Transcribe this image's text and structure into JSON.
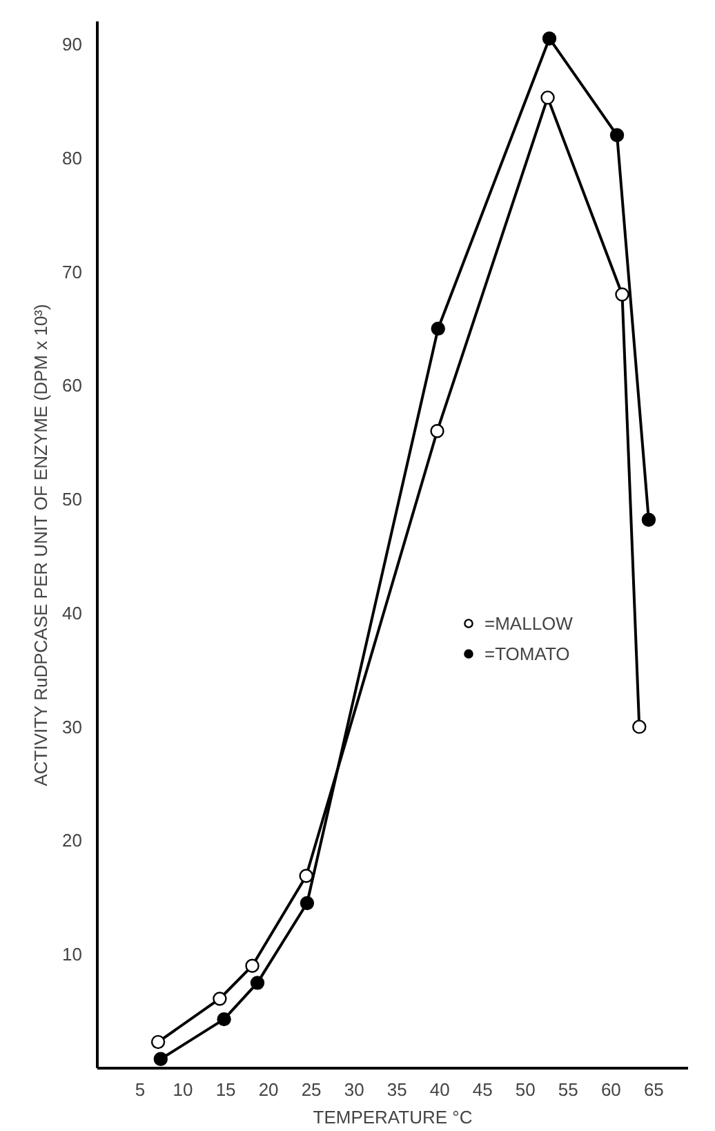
{
  "chart_data": {
    "type": "line",
    "xlabel": "TEMPERATURE °C",
    "ylabel": "ACTIVITY RuDPCASE PER UNIT OF ENZYME (DPM x 10³)",
    "xlim": [
      0,
      69
    ],
    "ylim": [
      0,
      92
    ],
    "xticks": [
      5,
      10,
      15,
      20,
      25,
      30,
      35,
      40,
      45,
      50,
      55,
      60,
      65
    ],
    "yticks": [
      10,
      20,
      30,
      40,
      50,
      60,
      70,
      80,
      90
    ],
    "grid": false,
    "legend": "right",
    "marker": "circle",
    "line_style": "solid",
    "series": [
      {
        "name": "=MALLOW",
        "color": "#000000",
        "x": [
          7.1,
          14.3,
          18.1,
          24.4,
          39.7,
          52.6,
          61.3,
          63.3
        ],
        "values": [
          2.3,
          6.1,
          9.0,
          16.9,
          56,
          85.3,
          68,
          30
        ]
      },
      {
        "name": "=TOMATO",
        "color": "#000000",
        "x": [
          7.4,
          14.8,
          18.7,
          24.5,
          39.8,
          52.8,
          60.7,
          64.4
        ],
        "values": [
          0.8,
          4.3,
          7.5,
          14.5,
          65,
          90.5,
          82,
          48.2
        ]
      }
    ]
  }
}
